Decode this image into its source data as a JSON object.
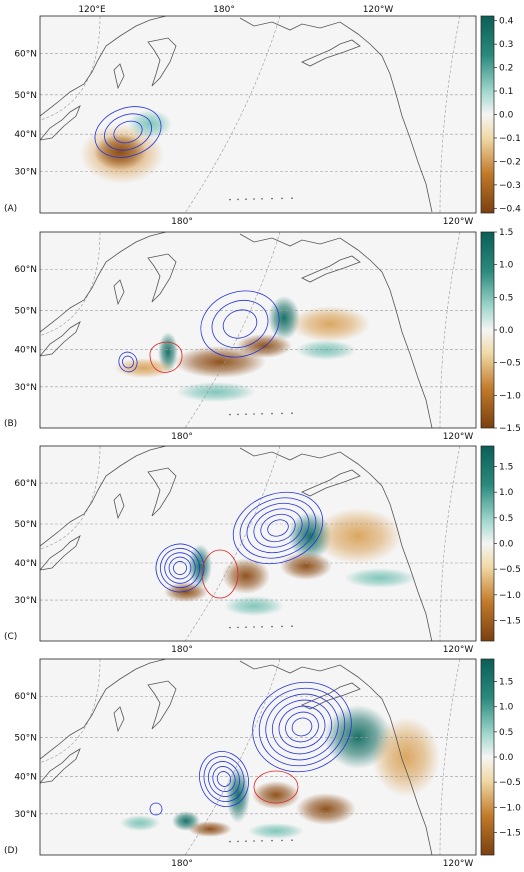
{
  "panels": [
    {
      "label": "(A)",
      "top_lon_labels": [
        "120°E",
        "180°",
        "120°W"
      ],
      "bottom_lon_labels": [
        "180°",
        "120°W"
      ],
      "lat_labels": [
        "60°N",
        "50°N",
        "40°N",
        "30°N"
      ],
      "colorbar": {
        "ticks": [
          "0.4",
          "0.3",
          "0.2",
          "0.1",
          "0.0",
          "−0.1",
          "−0.2",
          "−0.3",
          "−0.4"
        ],
        "range": [
          -0.42,
          0.42
        ]
      }
    },
    {
      "label": "(B)",
      "top_lon_labels": [],
      "bottom_lon_labels": [
        "180°",
        "120°W"
      ],
      "lat_labels": [
        "60°N",
        "50°N",
        "40°N",
        "30°N"
      ],
      "colorbar": {
        "ticks": [
          "1.5",
          "1.0",
          "0.5",
          "0.0",
          "−0.5",
          "−1.0",
          "−1.5"
        ],
        "range": [
          -1.5,
          1.5
        ]
      }
    },
    {
      "label": "(C)",
      "top_lon_labels": [],
      "bottom_lon_labels": [
        "180°",
        "120°W"
      ],
      "lat_labels": [
        "60°N",
        "50°N",
        "40°N",
        "30°N"
      ],
      "colorbar": {
        "ticks": [
          "1.5",
          "1.0",
          "0.5",
          "0.0",
          "−0.5",
          "−1.0",
          "−1.5"
        ],
        "range": [
          -1.9,
          1.9
        ]
      }
    },
    {
      "label": "(D)",
      "top_lon_labels": [],
      "bottom_lon_labels": [
        "180°",
        "120°W"
      ],
      "lat_labels": [
        "60°N",
        "50°N",
        "40°N",
        "30°N"
      ],
      "colorbar": {
        "ticks": [
          "1.5",
          "1.0",
          "0.5",
          "0.0",
          "−0.5",
          "−1.0",
          "−1.5"
        ],
        "range": [
          -1.95,
          1.95
        ]
      }
    }
  ],
  "colors": {
    "positive": "#0b5e55",
    "neutral": "#f5f5f5",
    "negative": "#7a4010",
    "contour_positive": "#2233dd",
    "contour_negative": "#dd2222",
    "coastline": "#555555",
    "grid": "#999999"
  }
}
